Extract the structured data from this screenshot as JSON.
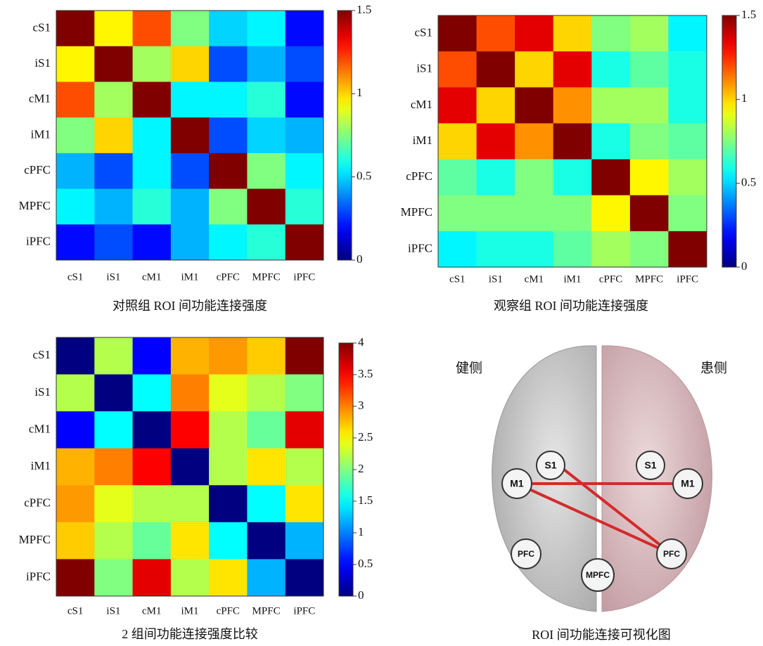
{
  "chart_data": [
    {
      "type": "heatmap",
      "caption": "对照组 ROI  间功能连接强度",
      "colormap": "jet",
      "x_categories": [
        "cS1",
        "iS1",
        "cM1",
        "iM1",
        "cPFC",
        "MPFC",
        "iPFC"
      ],
      "y_categories": [
        "cS1",
        "iS1",
        "cM1",
        "iM1",
        "cPFC",
        "MPFC",
        "iPFC"
      ],
      "z": [
        [
          1.5,
          0.95,
          1.2,
          0.75,
          0.5,
          0.55,
          0.2
        ],
        [
          0.95,
          1.5,
          0.8,
          1.0,
          0.3,
          0.45,
          0.3
        ],
        [
          1.2,
          0.8,
          1.5,
          0.55,
          0.55,
          0.62,
          0.2
        ],
        [
          0.75,
          1.0,
          0.55,
          1.5,
          0.3,
          0.5,
          0.45
        ],
        [
          0.45,
          0.3,
          0.55,
          0.3,
          1.5,
          0.75,
          0.55
        ],
        [
          0.55,
          0.45,
          0.62,
          0.45,
          0.75,
          1.5,
          0.62
        ],
        [
          0.2,
          0.3,
          0.2,
          0.45,
          0.55,
          0.62,
          1.5
        ]
      ],
      "zlim": [
        0,
        1.5
      ],
      "zticks": [
        0,
        0.5,
        1,
        1.5
      ]
    },
    {
      "type": "heatmap",
      "caption": "观察组 ROI  间功能连接强度",
      "colormap": "jet",
      "x_categories": [
        "cS1",
        "iS1",
        "cM1",
        "iM1",
        "cPFC",
        "MPFC",
        "iPFC"
      ],
      "y_categories": [
        "cS1",
        "iS1",
        "cM1",
        "iM1",
        "cPFC",
        "MPFC",
        "iPFC"
      ],
      "z": [
        [
          1.5,
          1.2,
          1.35,
          1.0,
          0.75,
          0.8,
          0.55
        ],
        [
          1.2,
          1.5,
          1.0,
          1.35,
          0.6,
          0.7,
          0.6
        ],
        [
          1.35,
          1.0,
          1.5,
          1.1,
          0.8,
          0.8,
          0.6
        ],
        [
          1.0,
          1.35,
          1.1,
          1.5,
          0.6,
          0.75,
          0.7
        ],
        [
          0.7,
          0.6,
          0.75,
          0.6,
          1.5,
          0.95,
          0.8
        ],
        [
          0.75,
          0.75,
          0.75,
          0.75,
          0.95,
          1.5,
          0.75
        ],
        [
          0.55,
          0.6,
          0.6,
          0.7,
          0.8,
          0.75,
          1.5
        ]
      ],
      "zlim": [
        0,
        1.5
      ],
      "zticks": [
        0,
        0.5,
        1,
        1.5
      ]
    },
    {
      "type": "heatmap",
      "caption": "2 组间功能连接强度比较",
      "colormap": "jet",
      "x_categories": [
        "cS1",
        "iS1",
        "cM1",
        "iM1",
        "cPFC",
        "MPFC",
        "iPFC"
      ],
      "y_categories": [
        "cS1",
        "iS1",
        "cM1",
        "iM1",
        "cPFC",
        "MPFC",
        "iPFC"
      ],
      "z": [
        [
          0,
          2.2,
          0.5,
          2.8,
          2.9,
          2.7,
          4.0
        ],
        [
          2.2,
          0,
          1.5,
          3.0,
          2.4,
          2.2,
          2.0
        ],
        [
          0.5,
          1.5,
          0,
          3.5,
          2.2,
          1.9,
          3.6
        ],
        [
          2.8,
          3.0,
          3.5,
          0,
          2.2,
          2.6,
          2.2
        ],
        [
          2.9,
          2.4,
          2.2,
          2.2,
          0,
          1.5,
          2.6
        ],
        [
          2.7,
          2.2,
          1.9,
          2.6,
          1.5,
          0,
          1.2
        ],
        [
          4.0,
          2.0,
          3.6,
          2.2,
          2.6,
          1.2,
          0
        ]
      ],
      "zlim": [
        0,
        4
      ],
      "zticks": [
        0,
        0.5,
        1,
        1.5,
        2,
        2.5,
        3,
        3.5,
        4
      ]
    }
  ],
  "diagram": {
    "left_label": "健侧",
    "right_label": "患侧",
    "nodes": [
      "S1",
      "S1",
      "M1",
      "M1",
      "PFC",
      "PFC",
      "MPFC"
    ],
    "caption": "ROI 间功能连接可视化图"
  }
}
